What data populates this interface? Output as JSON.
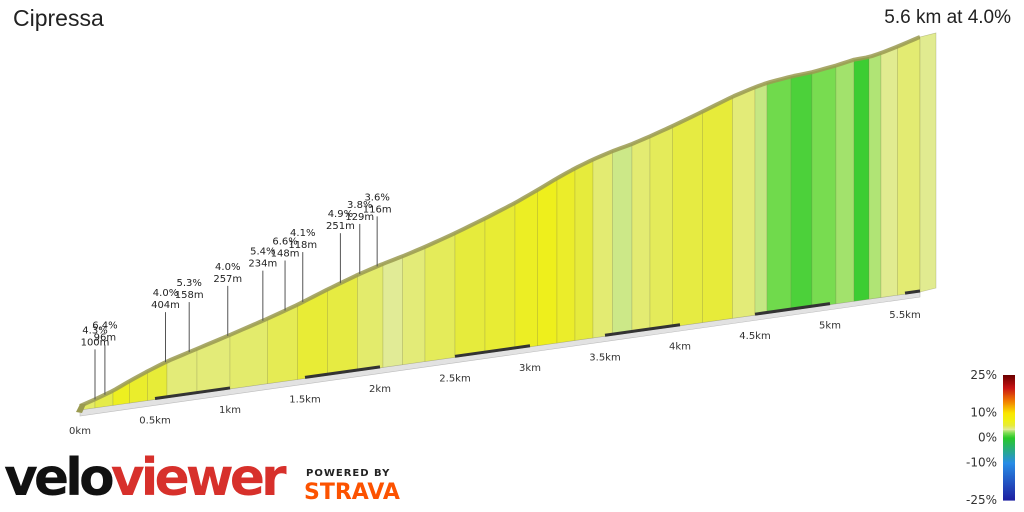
{
  "header": {
    "title": "Cipressa",
    "summary": "5.6 km at 4.0%"
  },
  "branding": {
    "logo_left": "velo",
    "logo_right": "viewer",
    "powered_by": "POWERED BY",
    "partner": "STRAVA",
    "logo_color": "#d7302b",
    "partner_color": "#fc5200"
  },
  "legend": {
    "labels": [
      "25%",
      "10%",
      "0%",
      "-10%",
      "-25%"
    ],
    "values": [
      25,
      10,
      0,
      -10,
      -25
    ]
  },
  "chart_data": {
    "type": "area",
    "title": "Cipressa",
    "distance_km": 5.6,
    "avg_gradient_percent": 4.0,
    "x_ticks": [
      0,
      0.5,
      1,
      1.5,
      2,
      2.5,
      3,
      3.5,
      4,
      4.5,
      5,
      5.5
    ],
    "x_tick_labels": [
      "0km",
      "0.5km",
      "1km",
      "1.5km",
      "2km",
      "2.5km",
      "3km",
      "3.5km",
      "4km",
      "4.5km",
      "5km",
      "5.5km"
    ],
    "sections": [
      {
        "gradient": "4.3%",
        "length": "100m",
        "g": 4.3,
        "len_m": 100
      },
      {
        "gradient": "6.4%",
        "length": "96m",
        "g": 6.4,
        "len_m": 96
      },
      {
        "gradient": "4.0%",
        "length": "404m",
        "g": 4.0,
        "len_m": 404
      },
      {
        "gradient": "5.3%",
        "length": "158m",
        "g": 5.3,
        "len_m": 158
      },
      {
        "gradient": "4.0%",
        "length": "257m",
        "g": 4.0,
        "len_m": 257
      },
      {
        "gradient": "5.4%",
        "length": "234m",
        "g": 5.4,
        "len_m": 234
      },
      {
        "gradient": "6.6%",
        "length": "148m",
        "g": 6.6,
        "len_m": 148
      },
      {
        "gradient": "4.1%",
        "length": "118m",
        "g": 4.1,
        "len_m": 118
      },
      {
        "gradient": "4.9%",
        "length": "251m",
        "g": 4.9,
        "len_m": 251
      },
      {
        "gradient": "3.8%",
        "length": "129m",
        "g": 3.8,
        "len_m": 129
      },
      {
        "gradient": "3.6%",
        "length": "116m",
        "g": 3.6,
        "len_m": 116
      }
    ],
    "profile": [
      {
        "d": 0.0,
        "g": 4.3
      },
      {
        "d": 0.1,
        "g": 4.8
      },
      {
        "d": 0.22,
        "g": 6.4
      },
      {
        "d": 0.33,
        "g": 5.8
      },
      {
        "d": 0.45,
        "g": 5.2
      },
      {
        "d": 0.58,
        "g": 4.0
      },
      {
        "d": 0.78,
        "g": 4.0
      },
      {
        "d": 1.0,
        "g": 4.2
      },
      {
        "d": 1.25,
        "g": 4.6
      },
      {
        "d": 1.45,
        "g": 5.3
      },
      {
        "d": 1.65,
        "g": 4.9
      },
      {
        "d": 1.85,
        "g": 4.2
      },
      {
        "d": 2.02,
        "g": 3.5
      },
      {
        "d": 2.15,
        "g": 4.0
      },
      {
        "d": 2.3,
        "g": 4.5
      },
      {
        "d": 2.5,
        "g": 5.0
      },
      {
        "d": 2.7,
        "g": 5.4
      },
      {
        "d": 2.9,
        "g": 6.2
      },
      {
        "d": 3.05,
        "g": 6.6
      },
      {
        "d": 3.18,
        "g": 5.9
      },
      {
        "d": 3.3,
        "g": 5.0
      },
      {
        "d": 3.42,
        "g": 4.1
      },
      {
        "d": 3.55,
        "g": 3.2
      },
      {
        "d": 3.68,
        "g": 4.1
      },
      {
        "d": 3.8,
        "g": 4.5
      },
      {
        "d": 3.95,
        "g": 4.9
      },
      {
        "d": 4.15,
        "g": 5.1
      },
      {
        "d": 4.35,
        "g": 4.0
      },
      {
        "d": 4.5,
        "g": 3.1
      },
      {
        "d": 4.58,
        "g": 1.8
      },
      {
        "d": 4.74,
        "g": 0.9
      },
      {
        "d": 4.88,
        "g": 2.0
      },
      {
        "d": 5.04,
        "g": 2.6
      },
      {
        "d": 5.16,
        "g": 0.5
      },
      {
        "d": 5.26,
        "g": 2.8
      },
      {
        "d": 5.34,
        "g": 3.6
      },
      {
        "d": 5.45,
        "g": 4.1
      },
      {
        "d": 5.6,
        "g": 4.1
      }
    ]
  }
}
